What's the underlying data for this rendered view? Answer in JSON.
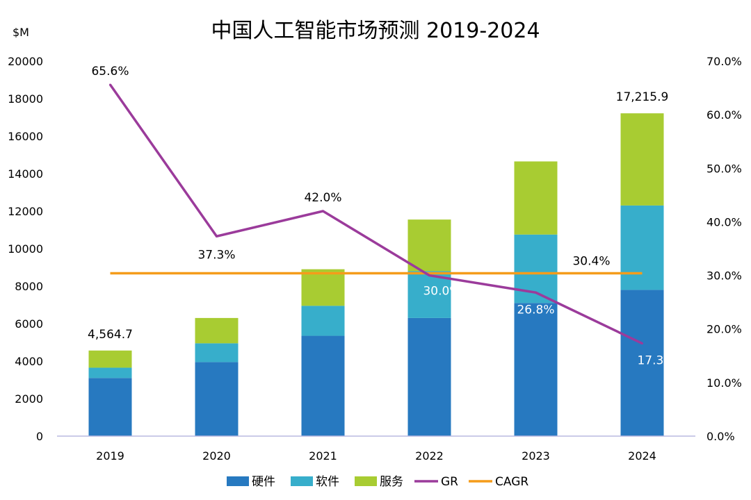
{
  "chart_data": {
    "type": "bar",
    "title": "中国人工智能市场预测 2019-2024",
    "y_unit": "$M",
    "categories": [
      "2019",
      "2020",
      "2021",
      "2022",
      "2023",
      "2024"
    ],
    "ylim": [
      0,
      20000
    ],
    "y_ticks": [
      "0",
      "2000",
      "4000",
      "6000",
      "8000",
      "10000",
      "12000",
      "14000",
      "16000",
      "18000",
      "20000"
    ],
    "y2lim": [
      0,
      70
    ],
    "y2_ticks": [
      "0.0%",
      "10.0%",
      "20.0%",
      "30.0%",
      "40.0%",
      "50.0%",
      "60.0%",
      "70.0%"
    ],
    "stack_series": [
      {
        "name": "硬件",
        "color": "#2779c0",
        "values": [
          3100,
          3950,
          5350,
          6300,
          7100,
          7800
        ]
      },
      {
        "name": "软件",
        "color": "#37aecb",
        "values": [
          550,
          1000,
          1600,
          2500,
          3650,
          4500
        ]
      },
      {
        "name": "服务",
        "color": "#a8cc32",
        "values": [
          914.7,
          1350,
          1950,
          2750,
          3900,
          4915.9
        ]
      }
    ],
    "line_series": [
      {
        "name": "GR",
        "color": "#9b3b9b",
        "values": [
          65.6,
          37.3,
          42.0,
          30.0,
          26.8,
          17.3
        ],
        "labels": [
          "65.6%",
          "37.3%",
          "42.0%",
          "30.0%",
          "26.8%",
          "17.3%"
        ]
      },
      {
        "name": "CAGR",
        "color": "#f59c1a",
        "values": [
          30.4,
          30.4,
          30.4,
          30.4,
          30.4,
          30.4
        ],
        "label": "30.4%"
      }
    ],
    "total_labels": [
      {
        "index": 0,
        "text": "4,564.7"
      },
      {
        "index": 5,
        "text": "17,215.9"
      }
    ],
    "legend": {
      "placement": "bottom",
      "entries": [
        "硬件",
        "软件",
        "服务",
        "GR",
        "CAGR"
      ]
    },
    "grid": false
  }
}
